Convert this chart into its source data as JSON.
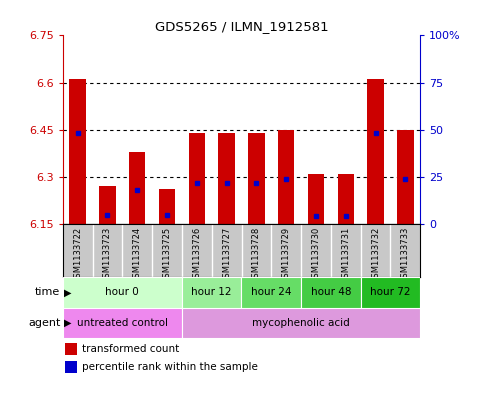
{
  "title": "GDS5265 / ILMN_1912581",
  "samples": [
    "GSM1133722",
    "GSM1133723",
    "GSM1133724",
    "GSM1133725",
    "GSM1133726",
    "GSM1133727",
    "GSM1133728",
    "GSM1133729",
    "GSM1133730",
    "GSM1133731",
    "GSM1133732",
    "GSM1133733"
  ],
  "transformed_count": [
    6.61,
    6.27,
    6.38,
    6.26,
    6.44,
    6.44,
    6.44,
    6.45,
    6.31,
    6.31,
    6.61,
    6.45
  ],
  "percentile_rank": [
    48,
    5,
    18,
    5,
    22,
    22,
    22,
    24,
    4,
    4,
    48,
    24
  ],
  "ylim_left": [
    6.15,
    6.75
  ],
  "ylim_right": [
    0,
    100
  ],
  "yticks_left": [
    6.15,
    6.3,
    6.45,
    6.6,
    6.75
  ],
  "yticks_right": [
    0,
    25,
    50,
    75,
    100
  ],
  "ytick_labels_left": [
    "6.15",
    "6.3",
    "6.45",
    "6.6",
    "6.75"
  ],
  "ytick_labels_right": [
    "0",
    "25",
    "50",
    "75",
    "100%"
  ],
  "bar_color": "#cc0000",
  "dot_color": "#0000cc",
  "bar_bottom": 6.15,
  "bar_width": 0.55,
  "gridlines": [
    6.3,
    6.45,
    6.6
  ],
  "time_groups": [
    {
      "label": "hour 0",
      "indices": [
        0,
        1,
        2,
        3
      ],
      "color": "#ccffcc"
    },
    {
      "label": "hour 12",
      "indices": [
        4,
        5
      ],
      "color": "#99ee99"
    },
    {
      "label": "hour 24",
      "indices": [
        6,
        7
      ],
      "color": "#66dd66"
    },
    {
      "label": "hour 48",
      "indices": [
        8,
        9
      ],
      "color": "#44cc44"
    },
    {
      "label": "hour 72",
      "indices": [
        10,
        11
      ],
      "color": "#22bb22"
    }
  ],
  "agent_groups": [
    {
      "label": "untreated control",
      "indices": [
        0,
        1,
        2,
        3
      ],
      "color": "#ee88ee"
    },
    {
      "label": "mycophenolic acid",
      "indices": [
        4,
        5,
        6,
        7,
        8,
        9,
        10,
        11
      ],
      "color": "#dd99dd"
    }
  ],
  "legend_bar_label": "transformed count",
  "legend_dot_label": "percentile rank within the sample",
  "time_label": "time",
  "agent_label": "agent",
  "sample_bg_color": "#c8c8c8",
  "plot_bg_color": "#ffffff",
  "tick_color_left": "#cc0000",
  "tick_color_right": "#0000cc",
  "border_color": "#000000"
}
